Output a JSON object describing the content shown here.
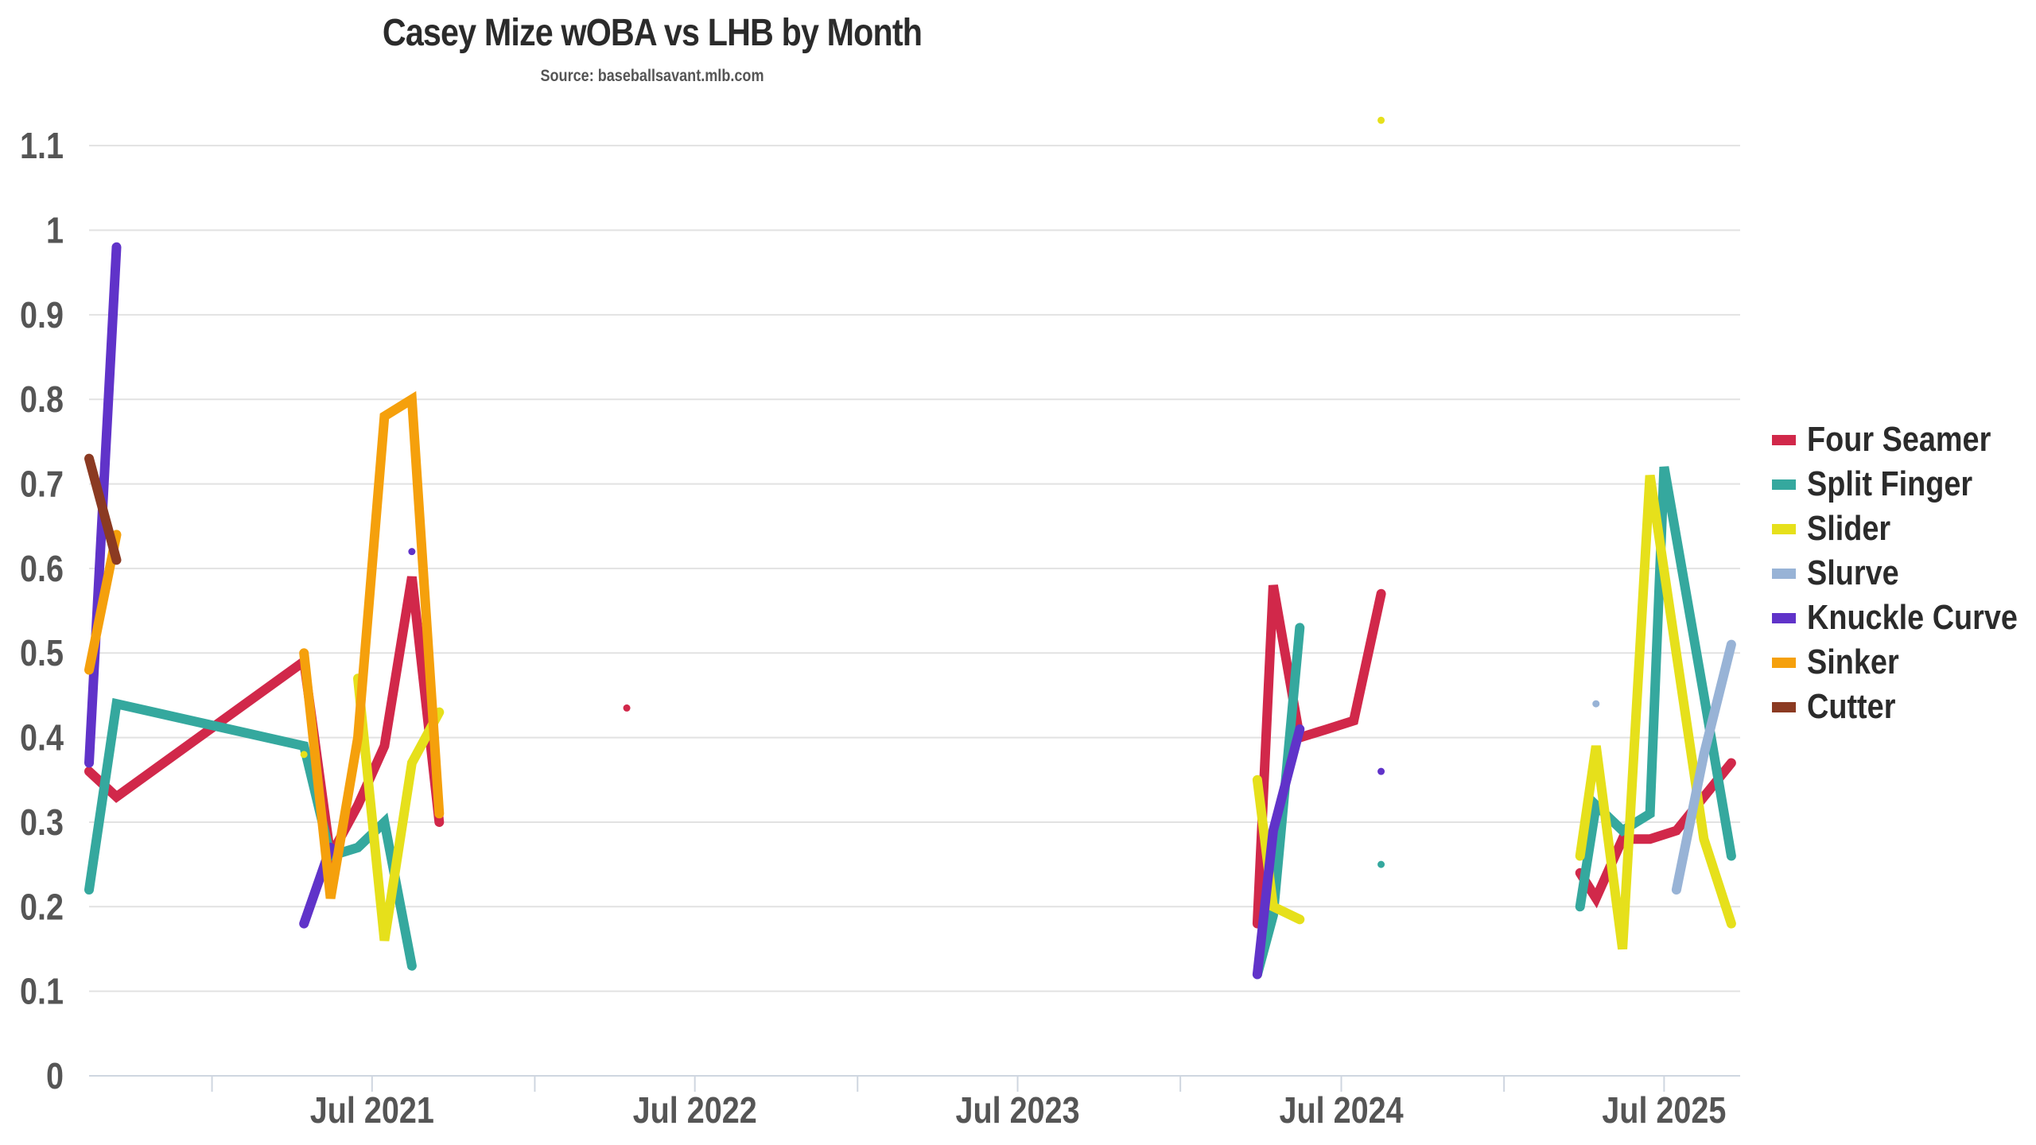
{
  "chart_data": {
    "type": "line",
    "title": "Casey Mize wOBA vs LHB by Month",
    "subtitle": "Source: baseballsavant.mlb.com",
    "xlabel": "",
    "ylabel": "",
    "ylim": [
      0,
      1.15
    ],
    "xlim": [
      "2020-08-15",
      "2025-09-25"
    ],
    "yticks": [
      0,
      0.1,
      0.2,
      0.3,
      0.4,
      0.5,
      0.6,
      0.7,
      0.8,
      0.9,
      1,
      1.1
    ],
    "xticks": [
      {
        "date": "2021-07-01",
        "label": "Jul 2021"
      },
      {
        "date": "2022-07-01",
        "label": "Jul 2022"
      },
      {
        "date": "2023-07-01",
        "label": "Jul 2023"
      },
      {
        "date": "2024-07-01",
        "label": "Jul 2024"
      },
      {
        "date": "2025-07-01",
        "label": "Jul 2025"
      }
    ],
    "minor_xticks": [
      "2021-01-01",
      "2022-01-01",
      "2023-01-01",
      "2024-01-01",
      "2025-01-01"
    ],
    "grid": true,
    "legend_position": "right",
    "series": [
      {
        "name": "Four Seamer",
        "color": "#d1284a",
        "points": [
          [
            "2020-08-15",
            0.36
          ],
          [
            "2020-09-15",
            0.33
          ],
          [
            "2021-04-15",
            0.49
          ],
          [
            "2021-05-15",
            0.26
          ],
          [
            "2021-06-15",
            0.32
          ],
          [
            "2021-07-15",
            0.39
          ],
          [
            "2021-08-15",
            0.59
          ],
          [
            "2021-09-15",
            0.3
          ],
          null,
          [
            "2022-04-15",
            0.435
          ],
          null,
          [
            "2024-03-28",
            0.18
          ],
          [
            "2024-04-15",
            0.58
          ],
          [
            "2024-05-15",
            0.4
          ],
          [
            "2024-06-15",
            0.41
          ],
          [
            "2024-07-15",
            0.42
          ],
          [
            "2024-08-15",
            0.57
          ],
          null,
          [
            "2025-03-28",
            0.24
          ],
          [
            "2025-04-15",
            0.21
          ],
          [
            "2025-05-15",
            0.28
          ],
          [
            "2025-06-15",
            0.28
          ],
          [
            "2025-07-15",
            0.29
          ],
          [
            "2025-08-15",
            0.33
          ],
          [
            "2025-09-15",
            0.37
          ]
        ]
      },
      {
        "name": "Split Finger",
        "color": "#35a89e",
        "points": [
          [
            "2020-08-15",
            0.22
          ],
          [
            "2020-09-15",
            0.44
          ],
          [
            "2021-04-15",
            0.39
          ],
          [
            "2021-05-15",
            0.26
          ],
          [
            "2021-06-15",
            0.27
          ],
          [
            "2021-07-15",
            0.3
          ],
          [
            "2021-08-15",
            0.13
          ],
          null,
          [
            "2024-03-28",
            0.12
          ],
          [
            "2024-04-15",
            0.19
          ],
          [
            "2024-05-15",
            0.53
          ],
          null,
          [
            "2024-08-15",
            0.25
          ],
          null,
          [
            "2025-03-28",
            0.2
          ],
          [
            "2025-04-15",
            0.32
          ],
          [
            "2025-05-15",
            0.29
          ],
          [
            "2025-06-15",
            0.31
          ],
          [
            "2025-07-01",
            0.72
          ],
          [
            "2025-08-15",
            0.45
          ],
          [
            "2025-09-15",
            0.26
          ]
        ]
      },
      {
        "name": "Slider",
        "color": "#e6e01b",
        "points": [
          [
            "2021-04-15",
            0.38
          ],
          null,
          [
            "2021-06-15",
            0.47
          ],
          [
            "2021-07-15",
            0.16
          ],
          [
            "2021-08-15",
            0.37
          ],
          [
            "2021-09-15",
            0.43
          ],
          null,
          [
            "2024-03-28",
            0.35
          ],
          [
            "2024-04-15",
            0.2
          ],
          [
            "2024-05-15",
            0.185
          ],
          null,
          [
            "2024-08-15",
            1.13
          ],
          null,
          [
            "2025-03-28",
            0.26
          ],
          [
            "2025-04-15",
            0.39
          ],
          [
            "2025-05-15",
            0.15
          ],
          [
            "2025-06-15",
            0.71
          ],
          [
            "2025-08-15",
            0.28
          ],
          [
            "2025-09-15",
            0.18
          ]
        ]
      },
      {
        "name": "Slurve",
        "color": "#98b3d6",
        "points": [
          [
            "2025-04-15",
            0.44
          ],
          null,
          [
            "2025-07-15",
            0.22
          ],
          [
            "2025-08-15",
            0.38
          ],
          [
            "2025-09-15",
            0.51
          ]
        ]
      },
      {
        "name": "Knuckle Curve",
        "color": "#6033c9",
        "points": [
          [
            "2020-08-15",
            0.37
          ],
          [
            "2020-09-15",
            0.98
          ],
          null,
          [
            "2021-04-15",
            0.18
          ],
          [
            "2021-05-15",
            0.27
          ],
          null,
          [
            "2021-08-15",
            0.62
          ],
          null,
          [
            "2024-03-28",
            0.12
          ],
          [
            "2024-04-15",
            0.29
          ],
          [
            "2024-05-15",
            0.41
          ],
          null,
          [
            "2024-08-15",
            0.36
          ]
        ]
      },
      {
        "name": "Sinker",
        "color": "#f5a00c",
        "points": [
          [
            "2020-08-15",
            0.48
          ],
          [
            "2020-09-15",
            0.64
          ],
          null,
          [
            "2021-04-15",
            0.5
          ],
          [
            "2021-05-15",
            0.21
          ],
          [
            "2021-06-15",
            0.4
          ],
          [
            "2021-07-15",
            0.78
          ],
          [
            "2021-08-15",
            0.8
          ],
          [
            "2021-09-15",
            0.31
          ]
        ]
      },
      {
        "name": "Cutter",
        "color": "#8b3a22",
        "points": [
          [
            "2020-08-15",
            0.73
          ],
          [
            "2020-09-15",
            0.61
          ]
        ]
      }
    ]
  }
}
